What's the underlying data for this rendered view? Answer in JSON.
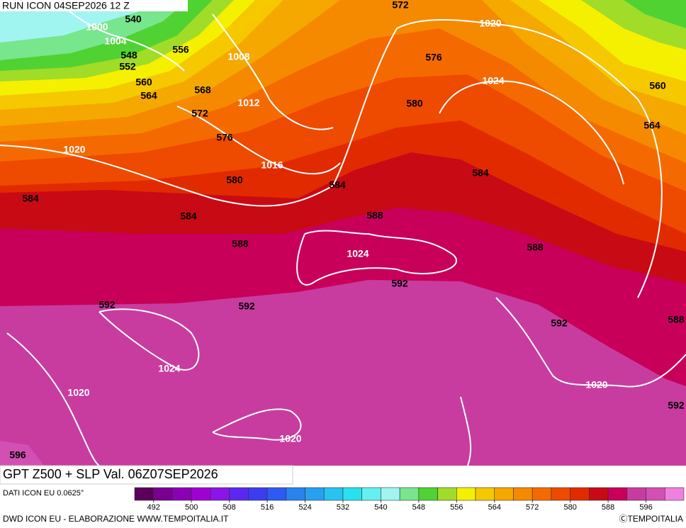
{
  "header": {
    "run": "RUN ICON 04SEP2026 12 Z"
  },
  "footer": {
    "title": "GPT Z500 + SLP Val. 06Z07SEP2026",
    "data_source": "DATI ICON EU 0.0625°",
    "credit": "DWD ICON EU - ELABORAZIONE WWW.TEMPOITALIA.IT",
    "copyright": "ⒸTEMPOITALIA"
  },
  "colorbar": {
    "colors": [
      "#5a005a",
      "#780090",
      "#8c00b4",
      "#a000d2",
      "#8c14e6",
      "#5a28f0",
      "#3c3cf0",
      "#2d5af0",
      "#2882f0",
      "#28a0f0",
      "#28c3f0",
      "#28e1f0",
      "#64f0f0",
      "#a0f5f0",
      "#78e68c",
      "#50d232",
      "#a0dc28",
      "#f5f000",
      "#f5c800",
      "#f5a800",
      "#f58a00",
      "#f56a00",
      "#ee4a00",
      "#e22a00",
      "#c80a14",
      "#c8005a",
      "#c83ca0",
      "#d250b4",
      "#f080e0"
    ],
    "ticks": [
      492,
      500,
      508,
      516,
      524,
      532,
      540,
      548,
      556,
      564,
      572,
      580,
      588,
      596
    ]
  },
  "gpt_labels": [
    "540",
    "548",
    "552",
    "556",
    "560",
    "564",
    "568",
    "572",
    "576",
    "580",
    "584",
    "584",
    "584",
    "588",
    "588",
    "588",
    "588",
    "592",
    "592",
    "592",
    "592",
    "592",
    "596",
    "572",
    "576",
    "580",
    "584",
    "560",
    "564"
  ],
  "slp_labels": [
    "1000",
    "1004",
    "1008",
    "1012",
    "1016",
    "1020",
    "1020",
    "1024",
    "1024",
    "1024",
    "1020",
    "1020",
    "1020"
  ]
}
